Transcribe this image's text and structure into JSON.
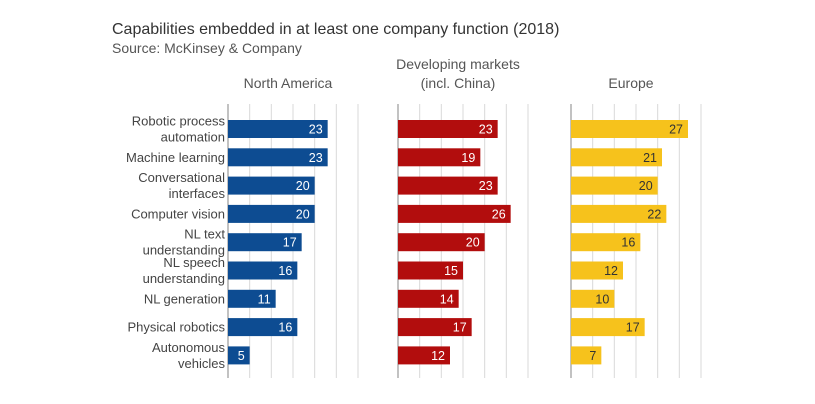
{
  "header": {
    "title": "Capabilities embedded in at least one company function (2018)",
    "subtitle": "Source: McKinsey & Company"
  },
  "chart_data": {
    "type": "bar",
    "orientation": "horizontal",
    "title": "Capabilities embedded in at least one company function (2018)",
    "subtitle": "Source: McKinsey & Company",
    "categories": [
      [
        "Robotic process",
        "automation"
      ],
      [
        "Machine learning"
      ],
      [
        "Conversational",
        "interfaces"
      ],
      [
        "Computer vision"
      ],
      [
        "NL text",
        "understanding"
      ],
      [
        "NL speech",
        "understanding"
      ],
      [
        "NL generation"
      ],
      [
        "Physical robotics"
      ],
      [
        "Autonomous",
        "vehicles"
      ]
    ],
    "xlim": [
      0,
      30
    ],
    "grid_step": 5,
    "series": [
      {
        "name": [
          "North America"
        ],
        "color": "#0d4c92",
        "label_color": "#ffffff",
        "values": [
          23,
          23,
          20,
          20,
          17,
          16,
          11,
          16,
          5
        ]
      },
      {
        "name": [
          "Developing markets",
          "(incl. China)"
        ],
        "color": "#b20d0d",
        "label_color": "#ffffff",
        "values": [
          23,
          19,
          23,
          26,
          20,
          15,
          14,
          17,
          12
        ]
      },
      {
        "name": [
          "Europe"
        ],
        "color": "#f6c21c",
        "label_color": "#333333",
        "values": [
          27,
          21,
          20,
          22,
          16,
          12,
          10,
          17,
          7
        ]
      }
    ]
  }
}
